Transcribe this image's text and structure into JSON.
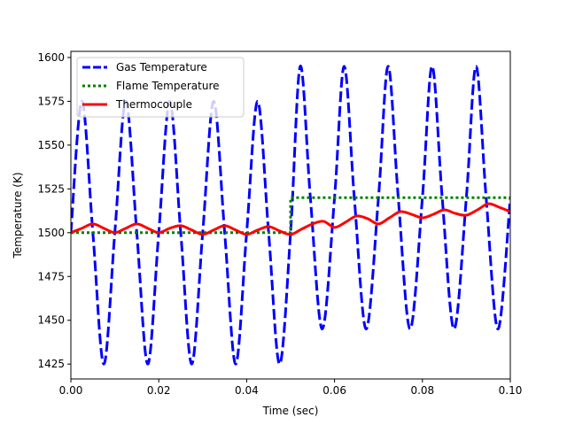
{
  "chart_data": {
    "type": "line",
    "title": "",
    "xlabel": "Time (sec)",
    "ylabel": "Temperature (K)",
    "xlim": [
      0.0,
      0.1
    ],
    "ylim": [
      1416.5,
      1603.5
    ],
    "xticks": [
      0.0,
      0.02,
      0.04,
      0.06,
      0.08,
      0.1
    ],
    "xtick_labels": [
      "0.00",
      "0.02",
      "0.04",
      "0.06",
      "0.08",
      "0.10"
    ],
    "yticks": [
      1425,
      1450,
      1475,
      1500,
      1525,
      1550,
      1575,
      1600
    ],
    "ytick_labels": [
      "1425",
      "1450",
      "1475",
      "1500",
      "1525",
      "1550",
      "1575",
      "1600"
    ],
    "grid": false,
    "legend_position": "upper-left",
    "series": [
      {
        "name": "Gas Temperature",
        "color": "#0000ff",
        "style": "dashed",
        "x": [
          0.0,
          0.0025,
          0.005,
          0.0075,
          0.01,
          0.0125,
          0.015,
          0.0175,
          0.02,
          0.0225,
          0.025,
          0.0275,
          0.03,
          0.0325,
          0.035,
          0.0375,
          0.04,
          0.0425,
          0.045,
          0.0475,
          0.05,
          0.0522,
          0.0545,
          0.0572,
          0.06,
          0.0622,
          0.0645,
          0.0672,
          0.07,
          0.0722,
          0.0745,
          0.0772,
          0.08,
          0.0822,
          0.0845,
          0.0872,
          0.09,
          0.0922,
          0.0945,
          0.0972,
          0.1
        ],
        "values": [
          1500,
          1575,
          1500,
          1425,
          1500,
          1575,
          1500,
          1425,
          1500,
          1575,
          1500,
          1425,
          1500,
          1575,
          1500,
          1425,
          1500,
          1575,
          1500,
          1425,
          1500,
          1595,
          1520,
          1445,
          1520,
          1595,
          1520,
          1445,
          1520,
          1595,
          1520,
          1445,
          1520,
          1595,
          1520,
          1445,
          1520,
          1595,
          1520,
          1445,
          1520
        ]
      },
      {
        "name": "Flame Temperature",
        "color": "#008000",
        "style": "dotted",
        "x": [
          0.0,
          0.05,
          0.05,
          0.1
        ],
        "values": [
          1500,
          1500,
          1520,
          1520
        ]
      },
      {
        "name": "Thermocouple",
        "color": "#ff0000",
        "style": "solid",
        "x": [
          0.0,
          0.0025,
          0.005,
          0.0075,
          0.01,
          0.0125,
          0.015,
          0.0175,
          0.02,
          0.0225,
          0.025,
          0.0275,
          0.03,
          0.0325,
          0.035,
          0.0375,
          0.04,
          0.0425,
          0.045,
          0.0475,
          0.05,
          0.0525,
          0.055,
          0.0575,
          0.06,
          0.0625,
          0.065,
          0.0675,
          0.07,
          0.0725,
          0.075,
          0.0775,
          0.08,
          0.0825,
          0.085,
          0.0875,
          0.09,
          0.0925,
          0.095,
          0.0975,
          0.1
        ],
        "values": [
          1500,
          1502.5,
          1505,
          1502.5,
          1500,
          1502.5,
          1505,
          1502.5,
          1500,
          1502.5,
          1504,
          1501.5,
          1499,
          1501.5,
          1504,
          1501.5,
          1499,
          1501.5,
          1503.5,
          1501,
          1499,
          1502,
          1505,
          1506.5,
          1503,
          1506,
          1509.5,
          1508,
          1505,
          1508.5,
          1512,
          1510.5,
          1508.5,
          1510.5,
          1513,
          1511,
          1510,
          1513,
          1516.5,
          1514.5,
          1512
        ]
      }
    ]
  }
}
